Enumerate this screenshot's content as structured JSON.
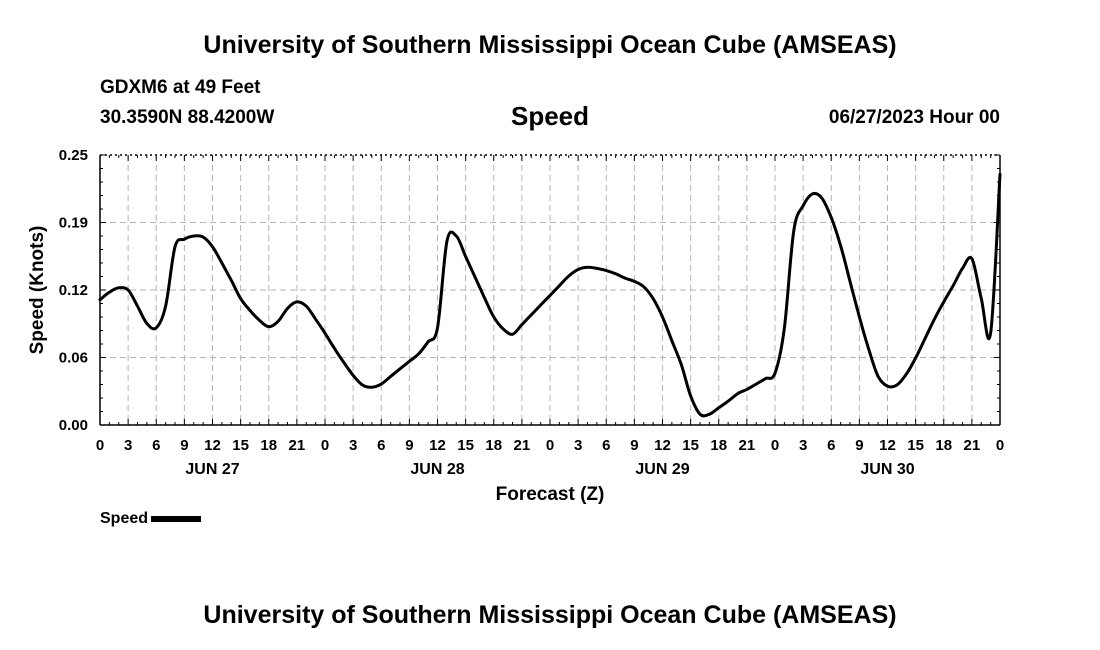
{
  "header": {
    "title_top": "University of Southern Mississippi Ocean Cube (AMSEAS)",
    "station_line": "GDXM6 at 49 Feet",
    "coords": "30.3590N  88.4200W",
    "chart_title": "Speed",
    "datetime": "06/27/2023 Hour 00"
  },
  "footer": {
    "title_bottom": "University of Southern Mississippi Ocean Cube (AMSEAS)"
  },
  "legend": {
    "label": "Speed",
    "color": "#000000"
  },
  "chart_data": {
    "type": "line",
    "title": "Speed",
    "xlabel": "Forecast (Z)",
    "ylabel": "Speed (Knots)",
    "x_range_hours": [
      0,
      96
    ],
    "ylim": [
      0,
      0.25
    ],
    "y_ticks": [
      "0.00",
      "0.06",
      "0.12",
      "0.19",
      "0.25"
    ],
    "y_tick_values": [
      0,
      0.0625,
      0.125,
      0.1875,
      0.25
    ],
    "x_tick_labels": [
      "0",
      "3",
      "6",
      "9",
      "12",
      "15",
      "18",
      "21",
      "0",
      "3",
      "6",
      "9",
      "12",
      "15",
      "18",
      "21",
      "0",
      "3",
      "6",
      "9",
      "12",
      "15",
      "18",
      "21",
      "0",
      "3",
      "6",
      "9",
      "12",
      "15",
      "18",
      "21",
      "0"
    ],
    "day_labels": [
      "JUN 27",
      "JUN 28",
      "JUN 29",
      "JUN 30"
    ],
    "grid": true,
    "series": [
      {
        "name": "Speed",
        "color": "#000000",
        "x": [
          0,
          1,
          2,
          3,
          4,
          5,
          6,
          7,
          8,
          9,
          10,
          11,
          12,
          13,
          14,
          15,
          16,
          17,
          18,
          19,
          20,
          21,
          22,
          23,
          24,
          25,
          26,
          27,
          28,
          29,
          30,
          31,
          32,
          33,
          34,
          35,
          36,
          37,
          38,
          39,
          40,
          41,
          42,
          43,
          44,
          45,
          46,
          47,
          48,
          49,
          50,
          51,
          52,
          53,
          54,
          55,
          56,
          57,
          58,
          59,
          60,
          61,
          62,
          63,
          64,
          65,
          66,
          67,
          68,
          69,
          70,
          71,
          72,
          73,
          74,
          75,
          76,
          77,
          78,
          79,
          80,
          81,
          82,
          83,
          84,
          85,
          86,
          87,
          88,
          89,
          90,
          91,
          92,
          93,
          94,
          95,
          96
        ],
        "values": [
          0.116,
          0.123,
          0.127,
          0.125,
          0.11,
          0.094,
          0.09,
          0.11,
          0.165,
          0.172,
          0.175,
          0.174,
          0.165,
          0.15,
          0.134,
          0.117,
          0.106,
          0.097,
          0.091,
          0.096,
          0.108,
          0.114,
          0.11,
          0.098,
          0.085,
          0.071,
          0.058,
          0.046,
          0.037,
          0.035,
          0.038,
          0.045,
          0.052,
          0.059,
          0.066,
          0.077,
          0.09,
          0.17,
          0.175,
          0.156,
          0.137,
          0.118,
          0.1,
          0.089,
          0.084,
          0.093,
          0.102,
          0.111,
          0.12,
          0.129,
          0.138,
          0.144,
          0.146,
          0.145,
          0.143,
          0.14,
          0.136,
          0.133,
          0.128,
          0.117,
          0.1,
          0.078,
          0.056,
          0.027,
          0.01,
          0.01,
          0.016,
          0.022,
          0.029,
          0.033,
          0.038,
          0.043,
          0.048,
          0.09,
          0.18,
          0.203,
          0.214,
          0.21,
          0.192,
          0.166,
          0.133,
          0.1,
          0.07,
          0.045,
          0.036,
          0.037,
          0.047,
          0.062,
          0.08,
          0.098,
          0.114,
          0.129,
          0.145,
          0.154,
          0.117,
          0.085,
          0.232
        ]
      }
    ]
  }
}
